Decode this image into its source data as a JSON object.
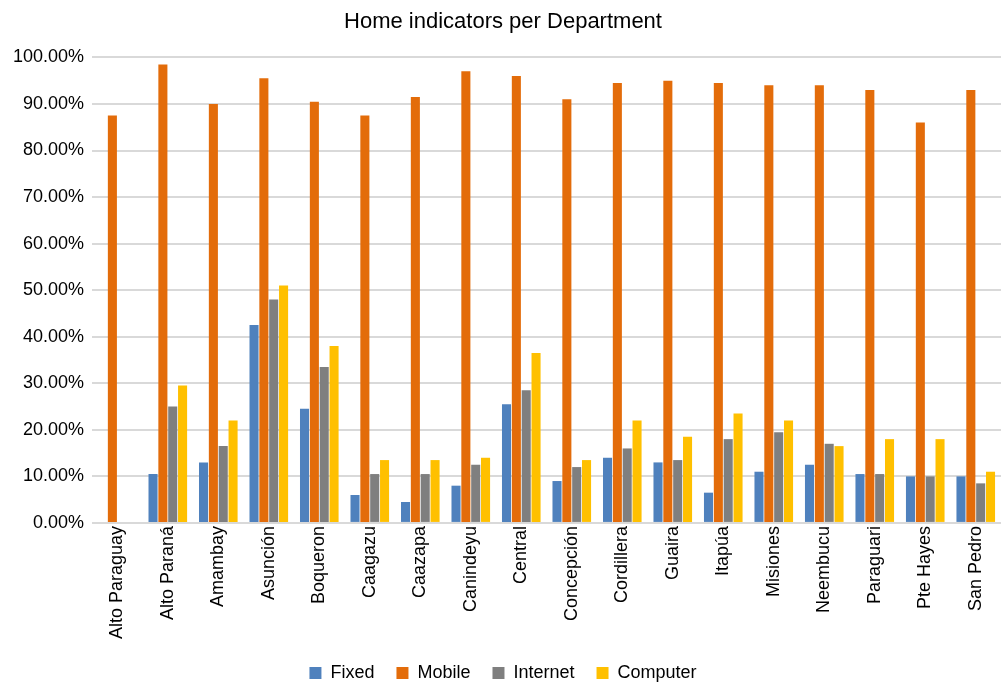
{
  "chart_data": {
    "type": "bar",
    "title": "Home indicators per Department",
    "categories": [
      "Alto Paraguay",
      "Alto Paraná",
      "Amambay",
      "Asunción",
      "Boqueron",
      "Caagazu",
      "Caazapa",
      "Canindeyu",
      "Central",
      "Concepción",
      "Cordillera",
      "Guaira",
      "Itapúa",
      "Misiones",
      "Neembucu",
      "Paraguari",
      "Pte Hayes",
      "San Pedro"
    ],
    "series": [
      {
        "name": "Fixed",
        "color": "#4f81bd",
        "values": [
          0,
          10.5,
          13,
          42.5,
          24.5,
          6,
          4.5,
          8,
          25.5,
          9,
          14,
          13,
          6.5,
          11,
          12.5,
          10.5,
          10,
          10
        ]
      },
      {
        "name": "Mobile",
        "color": "#e36c0a",
        "values": [
          87.5,
          98.5,
          90,
          95.5,
          90.5,
          87.5,
          91.5,
          97,
          96,
          91,
          94.5,
          95,
          94.5,
          94,
          94,
          93,
          86,
          93
        ]
      },
      {
        "name": "Internet",
        "color": "#7f7f7f",
        "values": [
          0,
          25,
          16.5,
          48,
          33.5,
          10.5,
          10.5,
          12.5,
          28.5,
          12,
          16,
          13.5,
          18,
          19.5,
          17,
          10.5,
          10,
          8.5
        ]
      },
      {
        "name": "Computer",
        "color": "#ffc000",
        "values": [
          0,
          29.5,
          22,
          51,
          38,
          13.5,
          13.5,
          14,
          36.5,
          13.5,
          22,
          18.5,
          23.5,
          22,
          16.5,
          18,
          18,
          11
        ]
      }
    ],
    "ylim": [
      0,
      100
    ],
    "yticks": [
      {
        "value": 0,
        "label": "0.00%"
      },
      {
        "value": 10,
        "label": "10.00%"
      },
      {
        "value": 20,
        "label": "20.00%"
      },
      {
        "value": 30,
        "label": "30.00%"
      },
      {
        "value": 40,
        "label": "40.00%"
      },
      {
        "value": 50,
        "label": "50.00%"
      },
      {
        "value": 60,
        "label": "60.00%"
      },
      {
        "value": 70,
        "label": "70.00%"
      },
      {
        "value": 80,
        "label": "80.00%"
      },
      {
        "value": 90,
        "label": "90.00%"
      },
      {
        "value": 100,
        "label": "100.00%"
      }
    ],
    "grid": "y",
    "legend": "bottom"
  }
}
